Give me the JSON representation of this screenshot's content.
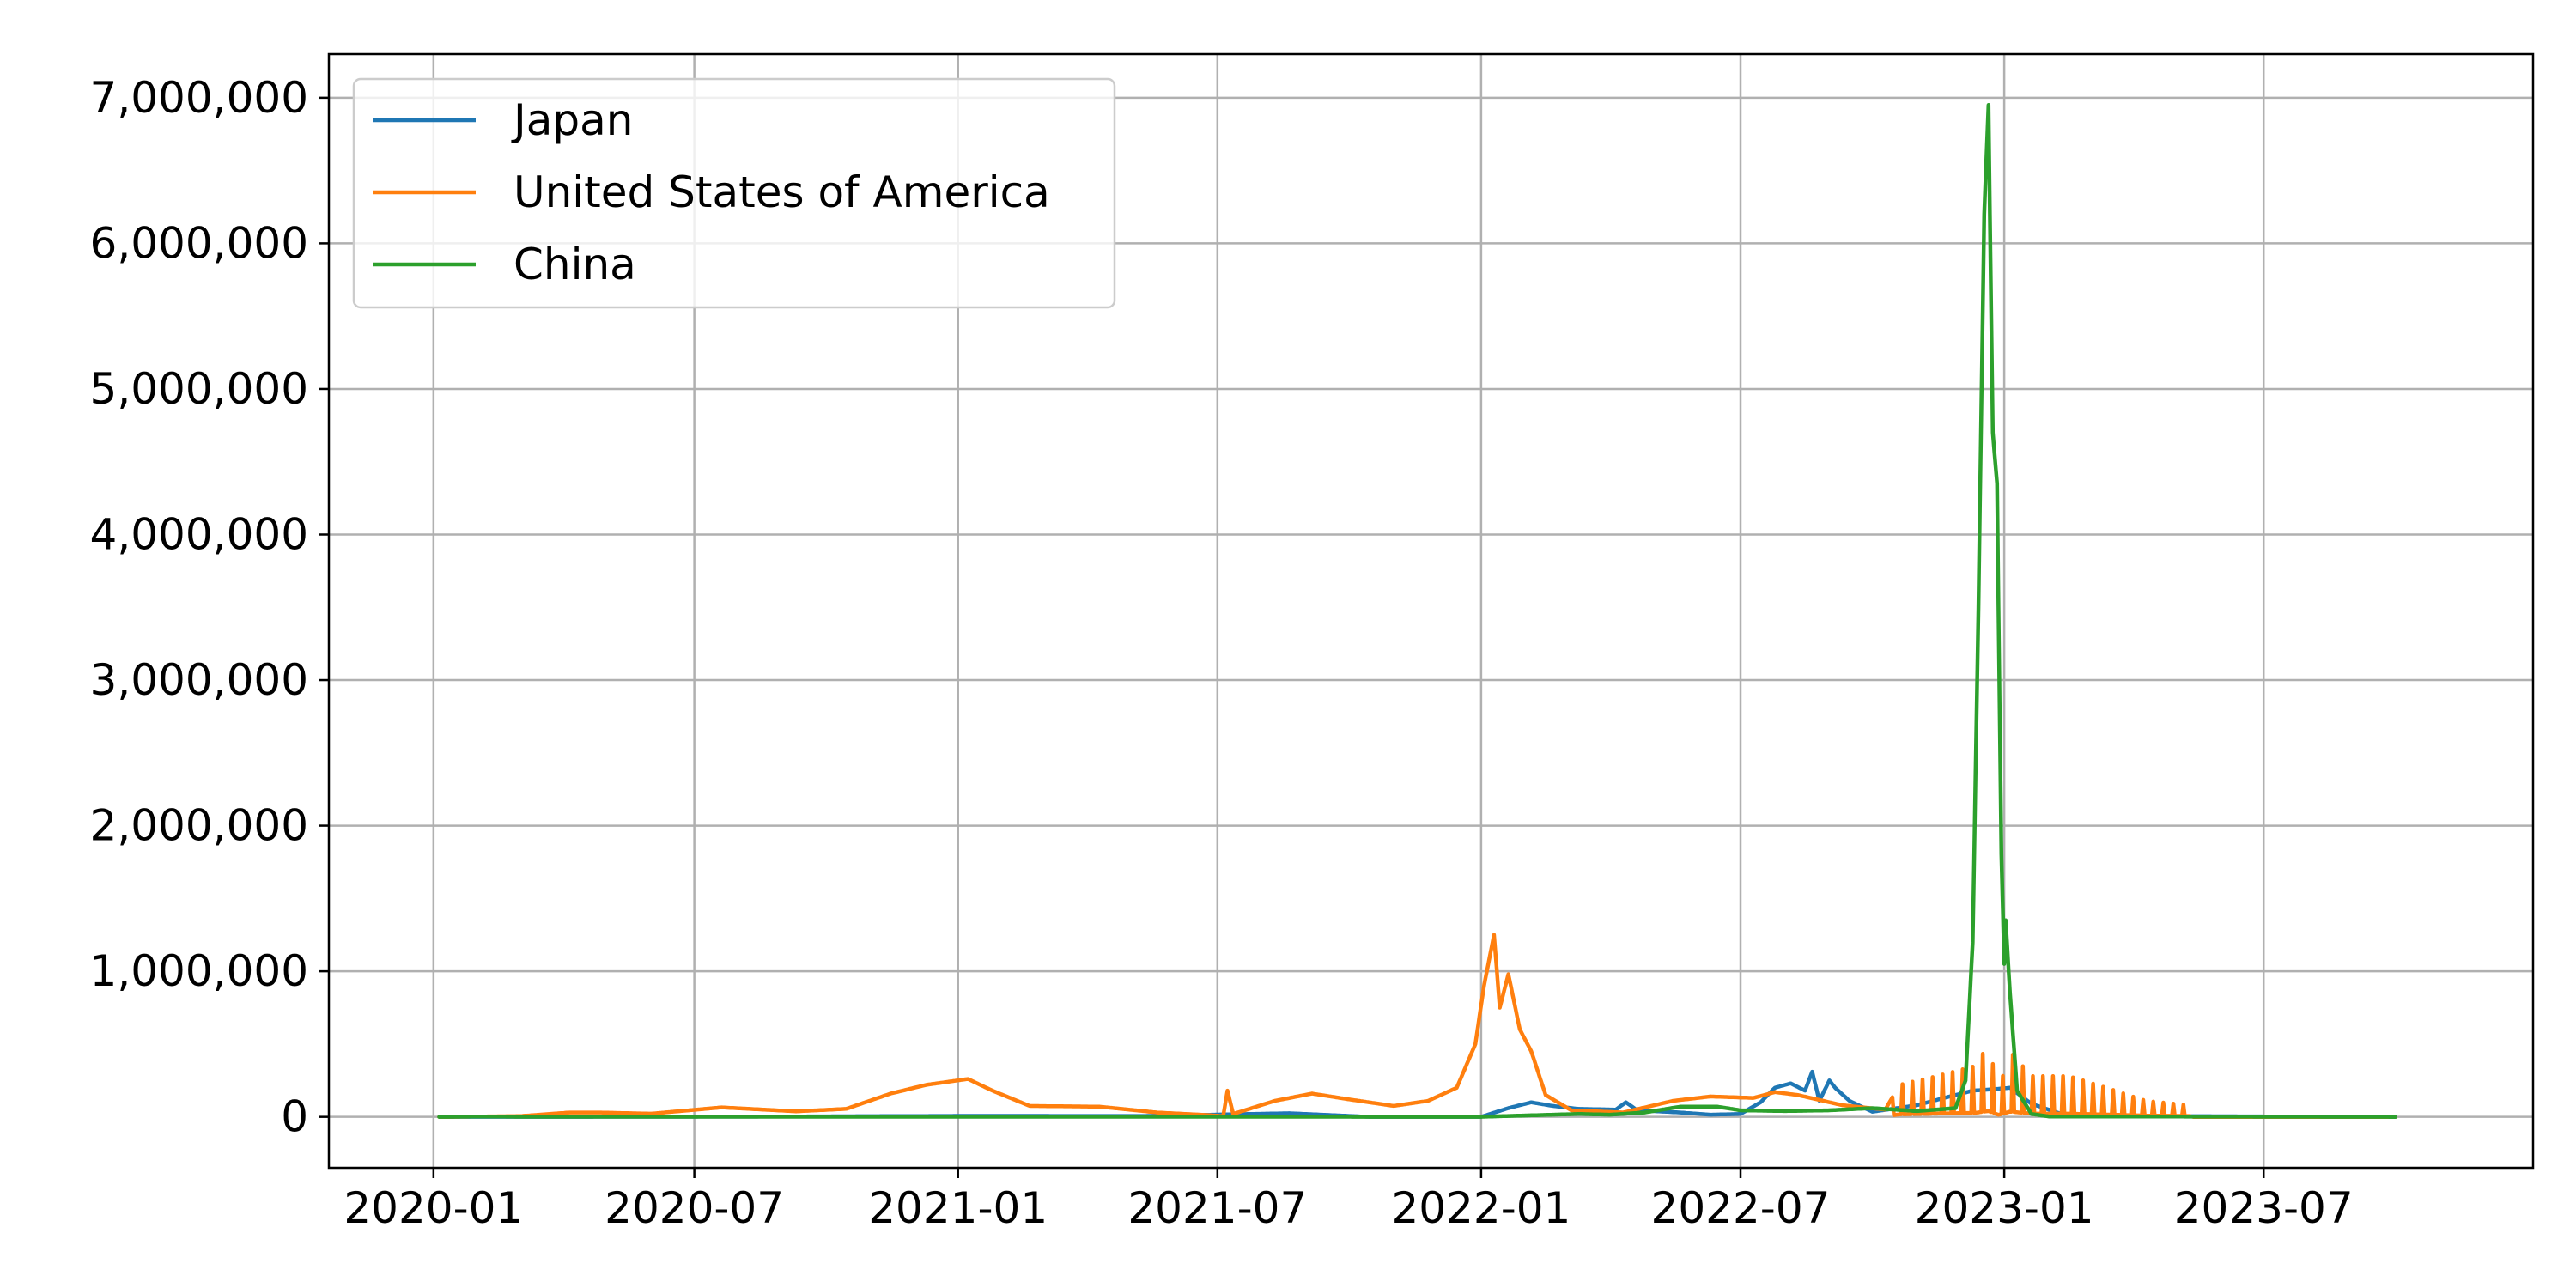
{
  "chart_data": {
    "type": "line",
    "title": "",
    "xlabel": "",
    "ylabel": "",
    "x_axis": {
      "type": "date",
      "range": [
        "2019-10-20",
        "2024-01-05"
      ],
      "ticks": [
        {
          "date": "2020-01-01",
          "label": "2020-01"
        },
        {
          "date": "2020-07-01",
          "label": "2020-07"
        },
        {
          "date": "2021-01-01",
          "label": "2021-01"
        },
        {
          "date": "2021-07-01",
          "label": "2021-07"
        },
        {
          "date": "2022-01-01",
          "label": "2022-01"
        },
        {
          "date": "2022-07-01",
          "label": "2022-07"
        },
        {
          "date": "2023-01-01",
          "label": "2023-01"
        },
        {
          "date": "2023-07-01",
          "label": "2023-07"
        }
      ]
    },
    "y_axis": {
      "range": [
        -350000,
        7300000
      ],
      "ticks": [
        {
          "value": 0,
          "label": "0"
        },
        {
          "value": 1000000,
          "label": "1,000,000"
        },
        {
          "value": 2000000,
          "label": "2,000,000"
        },
        {
          "value": 3000000,
          "label": "3,000,000"
        },
        {
          "value": 4000000,
          "label": "4,000,000"
        },
        {
          "value": 5000000,
          "label": "5,000,000"
        },
        {
          "value": 6000000,
          "label": "6,000,000"
        },
        {
          "value": 7000000,
          "label": "7,000,000"
        }
      ]
    },
    "grid": true,
    "legend_position": "top-left",
    "series": [
      {
        "name": "Japan",
        "color": "#1f77b4",
        "points": [
          [
            "2020-01-05",
            0
          ],
          [
            "2020-04-15",
            600
          ],
          [
            "2020-08-05",
            1500
          ],
          [
            "2021-01-10",
            7000
          ],
          [
            "2021-05-10",
            6000
          ],
          [
            "2021-08-20",
            25000
          ],
          [
            "2021-10-15",
            300
          ],
          [
            "2022-01-01",
            500
          ],
          [
            "2022-01-20",
            60000
          ],
          [
            "2022-02-05",
            100000
          ],
          [
            "2022-02-20",
            75000
          ],
          [
            "2022-03-10",
            55000
          ],
          [
            "2022-04-05",
            50000
          ],
          [
            "2022-04-12",
            100000
          ],
          [
            "2022-04-20",
            45000
          ],
          [
            "2022-05-20",
            30000
          ],
          [
            "2022-06-10",
            15000
          ],
          [
            "2022-07-01",
            20000
          ],
          [
            "2022-07-15",
            100000
          ],
          [
            "2022-07-25",
            200000
          ],
          [
            "2022-08-05",
            230000
          ],
          [
            "2022-08-15",
            180000
          ],
          [
            "2022-08-20",
            310000
          ],
          [
            "2022-08-25",
            110000
          ],
          [
            "2022-09-01",
            250000
          ],
          [
            "2022-09-05",
            200000
          ],
          [
            "2022-09-15",
            110000
          ],
          [
            "2022-10-01",
            35000
          ],
          [
            "2022-11-01",
            80000
          ],
          [
            "2022-11-20",
            130000
          ],
          [
            "2022-12-10",
            180000
          ],
          [
            "2022-12-25",
            190000
          ],
          [
            "2023-01-05",
            200000
          ],
          [
            "2023-01-20",
            90000
          ],
          [
            "2023-02-10",
            20000
          ],
          [
            "2023-03-15",
            8000
          ],
          [
            "2023-05-01",
            5000
          ],
          [
            "2023-10-01",
            0
          ]
        ]
      },
      {
        "name": "United States of America",
        "color": "#ff7f0e",
        "points": [
          [
            "2020-01-05",
            0
          ],
          [
            "2020-03-01",
            5000
          ],
          [
            "2020-04-05",
            30000
          ],
          [
            "2020-04-25",
            30000
          ],
          [
            "2020-06-01",
            22000
          ],
          [
            "2020-07-20",
            65000
          ],
          [
            "2020-09-10",
            38000
          ],
          [
            "2020-10-15",
            55000
          ],
          [
            "2020-11-15",
            160000
          ],
          [
            "2020-12-10",
            220000
          ],
          [
            "2021-01-08",
            260000
          ],
          [
            "2021-01-25",
            180000
          ],
          [
            "2021-02-20",
            75000
          ],
          [
            "2021-04-10",
            70000
          ],
          [
            "2021-05-20",
            30000
          ],
          [
            "2021-06-25",
            12000
          ],
          [
            "2021-07-05",
            5000
          ],
          [
            "2021-07-08",
            180000
          ],
          [
            "2021-07-12",
            20000
          ],
          [
            "2021-08-10",
            110000
          ],
          [
            "2021-09-05",
            160000
          ],
          [
            "2021-10-01",
            120000
          ],
          [
            "2021-11-01",
            75000
          ],
          [
            "2021-11-25",
            110000
          ],
          [
            "2021-12-15",
            200000
          ],
          [
            "2021-12-28",
            500000
          ],
          [
            "2022-01-03",
            900000
          ],
          [
            "2022-01-10",
            1250000
          ],
          [
            "2022-01-14",
            750000
          ],
          [
            "2022-01-20",
            980000
          ],
          [
            "2022-01-28",
            600000
          ],
          [
            "2022-02-05",
            450000
          ],
          [
            "2022-02-15",
            150000
          ],
          [
            "2022-03-05",
            45000
          ],
          [
            "2022-04-10",
            30000
          ],
          [
            "2022-05-15",
            110000
          ],
          [
            "2022-06-10",
            140000
          ],
          [
            "2022-07-10",
            130000
          ],
          [
            "2022-07-25",
            170000
          ],
          [
            "2022-08-10",
            150000
          ],
          [
            "2022-09-10",
            80000
          ],
          [
            "2022-10-10",
            50000
          ],
          [
            "2022-10-20",
            220000
          ],
          [
            "2022-11-15",
            280000
          ],
          [
            "2022-12-12",
            350000
          ],
          [
            "2022-12-21",
            500000
          ],
          [
            "2022-12-28",
            180000
          ],
          [
            "2023-01-05",
            450000
          ],
          [
            "2023-01-20",
            280000
          ],
          [
            "2023-02-15",
            280000
          ],
          [
            "2023-03-10",
            210000
          ],
          [
            "2023-04-10",
            110000
          ],
          [
            "2023-05-10",
            80000
          ],
          [
            "2023-05-13",
            0
          ],
          [
            "2023-10-01",
            0
          ]
        ],
        "weekly_oscillation": {
          "start": "2022-10-15",
          "end": "2023-05-13"
        }
      },
      {
        "name": "China",
        "color": "#2ca02c",
        "points": [
          [
            "2020-01-05",
            0
          ],
          [
            "2020-02-10",
            3000
          ],
          [
            "2020-03-01",
            800
          ],
          [
            "2021-01-01",
            800
          ],
          [
            "2022-01-01",
            600
          ],
          [
            "2022-02-20",
            15000
          ],
          [
            "2022-03-10",
            20000
          ],
          [
            "2022-04-01",
            15000
          ],
          [
            "2022-04-25",
            30000
          ],
          [
            "2022-05-20",
            70000
          ],
          [
            "2022-06-15",
            70000
          ],
          [
            "2022-07-01",
            45000
          ],
          [
            "2022-08-01",
            40000
          ],
          [
            "2022-09-01",
            45000
          ],
          [
            "2022-10-01",
            60000
          ],
          [
            "2022-11-01",
            40000
          ],
          [
            "2022-11-28",
            60000
          ],
          [
            "2022-12-05",
            250000
          ],
          [
            "2022-12-10",
            1200000
          ],
          [
            "2022-12-14",
            3500000
          ],
          [
            "2022-12-18",
            6200000
          ],
          [
            "2022-12-21",
            6950000
          ],
          [
            "2022-12-24",
            4700000
          ],
          [
            "2022-12-27",
            4350000
          ],
          [
            "2022-12-30",
            1800000
          ],
          [
            "2023-01-01",
            1050000
          ],
          [
            "2023-01-02",
            1350000
          ],
          [
            "2023-01-05",
            850000
          ],
          [
            "2023-01-10",
            180000
          ],
          [
            "2023-01-20",
            20000
          ],
          [
            "2023-02-01",
            3000
          ],
          [
            "2023-10-01",
            0
          ]
        ]
      }
    ]
  }
}
